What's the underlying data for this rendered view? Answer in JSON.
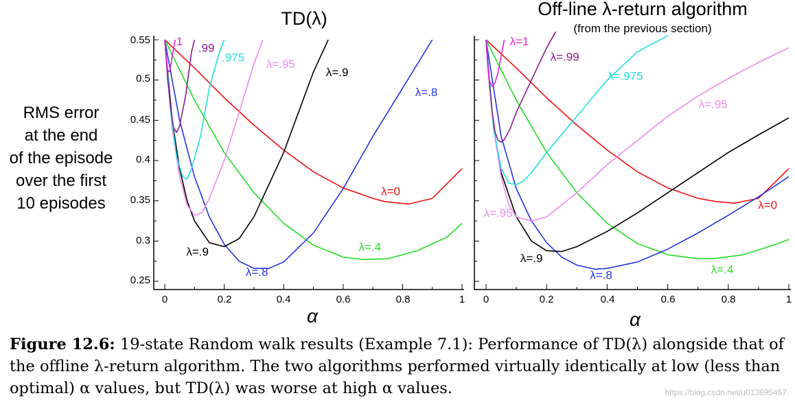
{
  "figure": {
    "ylabel_lines": [
      "RMS error",
      "at the end",
      "of the episode",
      "over the first",
      "10 episodes"
    ],
    "yticks": [
      "0.55",
      "0.5",
      "0.45",
      "0.4",
      "0.35",
      "0.3",
      "0.25"
    ],
    "xticks": [
      "0",
      "0.2",
      "0.4",
      "0.6",
      "0.8",
      "1"
    ],
    "xlabel": "α"
  },
  "colors": {
    "lambda_1": "#e020e0",
    "lambda_99": "#8a1a8a",
    "lambda_975": "#22dddd",
    "lambda_95": "#ee88ee",
    "lambda_9": "#000000",
    "lambda_8": "#2233dd",
    "lambda_4": "#22dd22",
    "lambda_0": "#ee1111"
  },
  "chart_data": [
    {
      "type": "line",
      "title": "TD(λ)",
      "xlabel": "α",
      "ylabel": "RMS error at the end of the episode over the first 10 episodes",
      "xlim": [
        0,
        1
      ],
      "ylim": [
        0.25,
        0.55
      ],
      "series": [
        {
          "name": "λ=0",
          "color": "#ee1111",
          "x": [
            0,
            0.1,
            0.2,
            0.3,
            0.4,
            0.5,
            0.6,
            0.7,
            0.74,
            0.82,
            0.9,
            1.0
          ],
          "y": [
            0.55,
            0.515,
            0.478,
            0.444,
            0.413,
            0.386,
            0.366,
            0.353,
            0.349,
            0.346,
            0.353,
            0.39
          ]
        },
        {
          "name": "λ=.4",
          "color": "#22dd22",
          "x": [
            0,
            0.1,
            0.2,
            0.3,
            0.4,
            0.5,
            0.6,
            0.67,
            0.75,
            0.85,
            0.95,
            1.0
          ],
          "y": [
            0.55,
            0.475,
            0.41,
            0.36,
            0.322,
            0.295,
            0.28,
            0.277,
            0.278,
            0.288,
            0.305,
            0.322
          ]
        },
        {
          "name": "λ=.8",
          "color": "#2233dd",
          "x": [
            0,
            0.05,
            0.1,
            0.15,
            0.2,
            0.25,
            0.3,
            0.35,
            0.4,
            0.5,
            0.6,
            0.7,
            0.8,
            0.9
          ],
          "y": [
            0.55,
            0.45,
            0.38,
            0.33,
            0.296,
            0.275,
            0.266,
            0.266,
            0.274,
            0.31,
            0.365,
            0.43,
            0.49,
            0.55
          ]
        },
        {
          "name": "λ=.9",
          "color": "#000000",
          "x": [
            0,
            0.025,
            0.05,
            0.075,
            0.1,
            0.15,
            0.2,
            0.25,
            0.3,
            0.4,
            0.5,
            0.55
          ],
          "y": [
            0.55,
            0.45,
            0.39,
            0.35,
            0.325,
            0.298,
            0.293,
            0.303,
            0.33,
            0.41,
            0.51,
            0.55
          ]
        },
        {
          "name": "λ=.95",
          "color": "#ee88ee",
          "x": [
            0,
            0.025,
            0.05,
            0.075,
            0.1,
            0.125,
            0.15,
            0.2,
            0.25,
            0.3,
            0.33
          ],
          "y": [
            0.55,
            0.44,
            0.38,
            0.345,
            0.332,
            0.335,
            0.353,
            0.4,
            0.46,
            0.52,
            0.55
          ]
        },
        {
          "name": ".975",
          "color": "#22dddd",
          "x": [
            0,
            0.02,
            0.04,
            0.06,
            0.075,
            0.09,
            0.12,
            0.15,
            0.18,
            0.2
          ],
          "y": [
            0.55,
            0.46,
            0.405,
            0.38,
            0.377,
            0.39,
            0.43,
            0.49,
            0.53,
            0.55
          ]
        },
        {
          "name": ".99",
          "color": "#8a1a8a",
          "x": [
            0,
            0.01,
            0.02,
            0.03,
            0.04,
            0.05,
            0.07,
            0.09,
            0.1
          ],
          "y": [
            0.55,
            0.5,
            0.465,
            0.44,
            0.435,
            0.443,
            0.48,
            0.535,
            0.55
          ]
        },
        {
          "name": "1",
          "color": "#e020e0",
          "x": [
            0,
            0.005,
            0.01,
            0.015,
            0.02,
            0.025,
            0.035
          ],
          "y": [
            0.55,
            0.525,
            0.512,
            0.51,
            0.518,
            0.53,
            0.55
          ]
        }
      ]
    },
    {
      "type": "line",
      "title": "Off-line λ-return algorithm",
      "subtitle": "(from the previous section)",
      "xlabel": "α",
      "xlim": [
        0,
        1
      ],
      "ylim": [
        0.25,
        0.55
      ],
      "series": [
        {
          "name": "λ=0",
          "color": "#ee1111",
          "x": [
            0,
            0.1,
            0.2,
            0.3,
            0.4,
            0.5,
            0.6,
            0.7,
            0.76,
            0.82,
            0.9,
            1.0
          ],
          "y": [
            0.55,
            0.515,
            0.478,
            0.444,
            0.413,
            0.386,
            0.366,
            0.353,
            0.349,
            0.347,
            0.353,
            0.39
          ]
        },
        {
          "name": "λ=.4",
          "color": "#22dd22",
          "x": [
            0,
            0.1,
            0.2,
            0.3,
            0.4,
            0.5,
            0.6,
            0.7,
            0.75,
            0.85,
            0.95,
            1.0
          ],
          "y": [
            0.55,
            0.475,
            0.41,
            0.36,
            0.322,
            0.297,
            0.283,
            0.278,
            0.278,
            0.283,
            0.295,
            0.302
          ]
        },
        {
          "name": "λ=.8",
          "color": "#2233dd",
          "x": [
            0,
            0.05,
            0.1,
            0.15,
            0.2,
            0.25,
            0.3,
            0.36,
            0.4,
            0.5,
            0.6,
            0.7,
            0.8,
            0.9,
            1.0
          ],
          "y": [
            0.55,
            0.43,
            0.365,
            0.325,
            0.298,
            0.28,
            0.27,
            0.265,
            0.266,
            0.274,
            0.29,
            0.31,
            0.332,
            0.355,
            0.38
          ]
        },
        {
          "name": "λ=.9",
          "color": "#000000",
          "x": [
            0,
            0.025,
            0.05,
            0.1,
            0.15,
            0.2,
            0.25,
            0.3,
            0.4,
            0.5,
            0.6,
            0.7,
            0.8,
            0.9,
            1.0
          ],
          "y": [
            0.55,
            0.44,
            0.385,
            0.33,
            0.3,
            0.288,
            0.287,
            0.293,
            0.312,
            0.335,
            0.36,
            0.385,
            0.41,
            0.432,
            0.453
          ]
        },
        {
          "name": "λ=.95",
          "color": "#ee88ee",
          "x": [
            0,
            0.025,
            0.05,
            0.075,
            0.1,
            0.15,
            0.2,
            0.3,
            0.4,
            0.5,
            0.6,
            0.7,
            0.8,
            0.9,
            1.0
          ],
          "y": [
            0.55,
            0.44,
            0.38,
            0.345,
            0.33,
            0.325,
            0.33,
            0.36,
            0.395,
            0.425,
            0.455,
            0.48,
            0.502,
            0.522,
            0.54
          ]
        },
        {
          "name": "λ.975",
          "color": "#22dddd",
          "x": [
            0,
            0.025,
            0.05,
            0.075,
            0.1,
            0.125,
            0.15,
            0.2,
            0.3,
            0.4,
            0.5,
            0.6
          ],
          "y": [
            0.55,
            0.44,
            0.39,
            0.372,
            0.37,
            0.375,
            0.385,
            0.41,
            0.455,
            0.5,
            0.535,
            0.555
          ]
        },
        {
          "name": "λ=.99",
          "color": "#8a1a8a",
          "x": [
            0,
            0.01,
            0.02,
            0.03,
            0.04,
            0.05,
            0.06,
            0.08,
            0.1,
            0.15,
            0.2,
            0.23
          ],
          "y": [
            0.55,
            0.5,
            0.46,
            0.435,
            0.425,
            0.423,
            0.426,
            0.44,
            0.46,
            0.5,
            0.54,
            0.56
          ]
        },
        {
          "name": "λ=1",
          "color": "#e020e0",
          "x": [
            0,
            0.005,
            0.01,
            0.02,
            0.03,
            0.04,
            0.05,
            0.06
          ],
          "y": [
            0.55,
            0.52,
            0.5,
            0.492,
            0.497,
            0.51,
            0.53,
            0.55
          ]
        }
      ]
    }
  ],
  "curve_labels": {
    "left": [
      {
        "text": "1",
        "color": "#e020e0",
        "ax": 0.05,
        "ay": 0.543
      },
      {
        "text": ".99",
        "color": "#8a1a8a",
        "ax": 0.14,
        "ay": 0.535
      },
      {
        "text": ".975",
        "color": "#22dddd",
        "ax": 0.23,
        "ay": 0.523
      },
      {
        "text": "λ=.95",
        "color": "#ee88ee",
        "ax": 0.39,
        "ay": 0.515
      },
      {
        "text": "λ=.9",
        "color": "#000000",
        "ax": 0.58,
        "ay": 0.505
      },
      {
        "text": "λ=.8",
        "color": "#2233dd",
        "ax": 0.88,
        "ay": 0.48
      },
      {
        "text": "λ=0",
        "color": "#ee1111",
        "ax": 0.76,
        "ay": 0.357
      },
      {
        "text": "λ=.4",
        "color": "#22dd22",
        "ax": 0.69,
        "ay": 0.288
      },
      {
        "text": "λ=.9",
        "color": "#000000",
        "ax": 0.11,
        "ay": 0.282
      },
      {
        "text": "λ=.8",
        "color": "#2233dd",
        "ax": 0.31,
        "ay": 0.257
      }
    ],
    "right": [
      {
        "text": "λ=1",
        "color": "#e020e0",
        "ax": 0.11,
        "ay": 0.543
      },
      {
        "text": "λ=.99",
        "color": "#8a1a8a",
        "ax": 0.26,
        "ay": 0.524
      },
      {
        "text": "λ=.975",
        "color": "#22dddd",
        "ax": 0.46,
        "ay": 0.5
      },
      {
        "text": "λ=.95",
        "color": "#ee88ee",
        "ax": 0.75,
        "ay": 0.465
      },
      {
        "text": "λ=0",
        "color": "#ee1111",
        "ax": 0.93,
        "ay": 0.34
      },
      {
        "text": "λ=.95",
        "color": "#ee88ee",
        "ax": 0.04,
        "ay": 0.33
      },
      {
        "text": "λ=.9",
        "color": "#000000",
        "ax": 0.15,
        "ay": 0.274
      },
      {
        "text": "λ=.4",
        "color": "#22dd22",
        "ax": 0.78,
        "ay": 0.26
      },
      {
        "text": "λ=.8",
        "color": "#2233dd",
        "ax": 0.38,
        "ay": 0.253
      }
    ]
  },
  "caption": {
    "label": "Figure 12.6:",
    "text": " 19-state Random walk results (Example 7.1): Performance of TD(λ) alongside that of the offline λ-return algorithm. The two algorithms performed virtually identically at low (less than optimal) α values, but TD(λ) was worse at high α values."
  },
  "watermark": "https://blog.csdn.net/u013695457"
}
